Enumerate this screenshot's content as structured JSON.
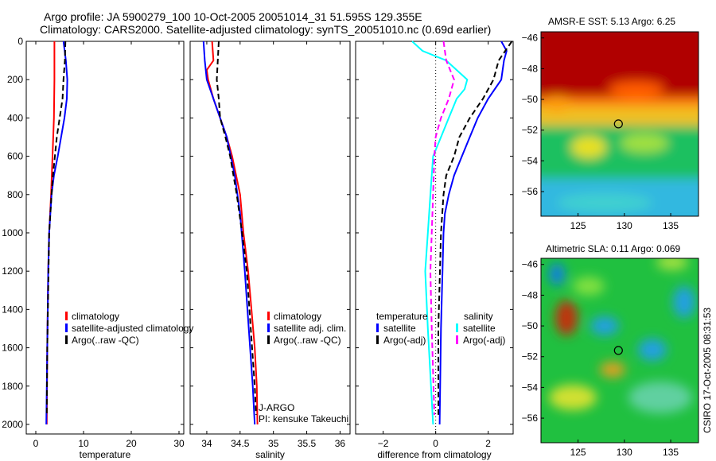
{
  "title_line1": "Argo profile: JA 5900279_100 10-Oct-2005 20051014_31 51.595S 129.355E",
  "title_line2": "Climatology: CARS2000. Satellite-adjusted climatology: synTS_20051010.nc (0.69d earlier)",
  "footer_vertical": "CSIRO 17-Oct-2005 08:31:53",
  "float_info": [
    "J-ARGO",
    "PI: kensuke Takeuchi"
  ],
  "colors": {
    "climatology": "#ff0000",
    "satellite": "#0000ff",
    "argo": "#000000",
    "sal_satellite": "#00ffff",
    "sal_argo": "#ff00ff"
  },
  "chart_data": [
    {
      "type": "line",
      "id": "temperature",
      "xlabel": "temperature",
      "ylabel": "",
      "xlim": [
        -2,
        31
      ],
      "ylim": [
        2050,
        0
      ],
      "xticks": [
        0,
        10,
        20,
        30
      ],
      "yticks": [
        0,
        200,
        400,
        600,
        800,
        1000,
        1200,
        1400,
        1600,
        1800,
        2000
      ],
      "legend": [
        "climatology",
        "satellite-adjusted climatology",
        "Argo(..raw -QC)"
      ],
      "legend_placement": "lower-right",
      "series": [
        {
          "name": "climatology",
          "color": "#ff0000",
          "dash": false,
          "depth": [
            0,
            200,
            400,
            600,
            800,
            1000,
            1200,
            1600,
            2000
          ],
          "values": [
            3.9,
            3.9,
            3.8,
            3.5,
            3.2,
            2.8,
            2.6,
            2.4,
            2.3
          ]
        },
        {
          "name": "satellite-adjusted climatology",
          "color": "#0000ff",
          "dash": false,
          "depth": [
            0,
            100,
            200,
            300,
            400,
            500,
            600,
            700,
            800,
            1000,
            1200,
            1600,
            2000
          ],
          "values": [
            5.8,
            6.3,
            6.6,
            6.5,
            6.0,
            5.3,
            4.6,
            3.8,
            3.3,
            2.8,
            2.6,
            2.4,
            2.2
          ]
        },
        {
          "name": "Argo(..raw -QC)",
          "color": "#000000",
          "dash": true,
          "depth": [
            0,
            100,
            200,
            300,
            400,
            500,
            600,
            700,
            800,
            1000,
            1600,
            1950
          ],
          "values": [
            6.2,
            6.1,
            5.8,
            5.6,
            5.0,
            4.4,
            4.0,
            3.6,
            3.3,
            2.8,
            2.4,
            2.3
          ]
        }
      ]
    },
    {
      "type": "line",
      "id": "salinity",
      "xlabel": "salinity",
      "xlim": [
        33.75,
        36.15
      ],
      "ylim": [
        2050,
        0
      ],
      "xticks": [
        34,
        34.5,
        35,
        35.5,
        36
      ],
      "yticks": [],
      "legend": [
        "climatology",
        "satellite adj. clim.",
        "Argo(..raw -QC)"
      ],
      "legend_placement": "lower-right",
      "series": [
        {
          "name": "climatology",
          "color": "#ff0000",
          "dash": false,
          "depth": [
            0,
            100,
            150,
            200,
            300,
            400,
            500,
            600,
            800,
            1000,
            1200,
            1400,
            1600,
            1800,
            2000
          ],
          "values": [
            34.08,
            34.1,
            34.0,
            34.02,
            34.1,
            34.2,
            34.3,
            34.38,
            34.5,
            34.55,
            34.62,
            34.67,
            34.72,
            34.75,
            34.76
          ]
        },
        {
          "name": "satellite adj. clim.",
          "color": "#0000ff",
          "dash": false,
          "depth": [
            0,
            100,
            200,
            300,
            400,
            500,
            700,
            900,
            1200,
            1500,
            1800,
            2000
          ],
          "values": [
            33.95,
            33.97,
            34.0,
            34.1,
            34.2,
            34.3,
            34.42,
            34.5,
            34.57,
            34.63,
            34.69,
            34.72
          ]
        },
        {
          "name": "Argo(..raw -QC)",
          "color": "#000000",
          "dash": true,
          "depth": [
            0,
            200,
            300,
            400,
            500,
            600,
            800,
            1000,
            1200,
            1500,
            1800,
            1950
          ],
          "values": [
            34.18,
            34.15,
            34.18,
            34.2,
            34.28,
            34.35,
            34.45,
            34.53,
            34.6,
            34.66,
            34.72,
            34.74
          ]
        }
      ]
    },
    {
      "type": "line",
      "id": "difference",
      "xlabel": "difference from climatology",
      "xlim": [
        -3.05,
        2.95
      ],
      "ylim": [
        2050,
        0
      ],
      "xticks": [
        -2,
        0,
        2
      ],
      "yticks": [],
      "legend_groups": [
        {
          "title": "temperature",
          "items": [
            "satellite",
            "Argo(-adj)"
          ]
        },
        {
          "title": "salinity",
          "items": [
            "satellite",
            "Argo(-adj)"
          ]
        }
      ],
      "series": [
        {
          "name": "temperature satellite",
          "color": "#0000ff",
          "dash": false,
          "depth": [
            0,
            50,
            100,
            200,
            300,
            400,
            500,
            600,
            700,
            800,
            900,
            1000,
            1500,
            2000
          ],
          "values": [
            2.5,
            2.7,
            2.6,
            2.5,
            2.0,
            1.6,
            1.3,
            1.0,
            0.7,
            0.5,
            0.35,
            0.3,
            0.2,
            0.15
          ]
        },
        {
          "name": "temperature Argo(-adj)",
          "color": "#000000",
          "dash": true,
          "depth": [
            0,
            100,
            200,
            300,
            400,
            500,
            600,
            700,
            800,
            1000,
            1500,
            1950
          ],
          "values": [
            2.9,
            2.4,
            2.2,
            1.8,
            1.3,
            0.9,
            0.7,
            0.4,
            0.3,
            0.2,
            0.1,
            0.1
          ]
        },
        {
          "name": "salinity satellite",
          "color": "#00ffff",
          "dash": false,
          "depth": [
            0,
            50,
            100,
            200,
            250,
            300,
            400,
            500,
            600,
            800,
            1000,
            1200,
            1500,
            2000
          ],
          "values": [
            -0.9,
            -0.5,
            0.4,
            1.2,
            1.1,
            0.8,
            0.5,
            0.2,
            -0.1,
            -0.2,
            -0.3,
            -0.4,
            -0.3,
            -0.1
          ]
        },
        {
          "name": "salinity Argo(-adj)",
          "color": "#ff00ff",
          "dash": true,
          "depth": [
            0,
            100,
            200,
            300,
            400,
            500,
            600,
            800,
            1000,
            1200,
            1500,
            1950
          ],
          "values": [
            0.3,
            0.4,
            0.7,
            0.5,
            0.2,
            0.0,
            -0.05,
            -0.1,
            -0.15,
            -0.2,
            -0.15,
            -0.05
          ]
        }
      ]
    },
    {
      "type": "heatmap",
      "id": "sst",
      "title": "AMSR-E SST: 5.13 Argo: 6.25",
      "xlim": [
        121,
        138
      ],
      "ylim": [
        -57.6,
        -45.6
      ],
      "xticks": [
        125,
        130,
        135
      ],
      "yticks": [
        -46,
        -48,
        -50,
        -52,
        -54,
        -56
      ],
      "marker": {
        "lon": 129.355,
        "lat": -51.595
      }
    },
    {
      "type": "heatmap",
      "id": "sla",
      "title": "Altimetric SLA: 0.11 Argo: 0.069",
      "xlim": [
        121,
        138
      ],
      "ylim": [
        -57.6,
        -45.6
      ],
      "xticks": [
        125,
        130,
        135
      ],
      "yticks": [
        -46,
        -48,
        -50,
        -52,
        -54,
        -56
      ],
      "marker": {
        "lon": 129.355,
        "lat": -51.595
      }
    }
  ]
}
